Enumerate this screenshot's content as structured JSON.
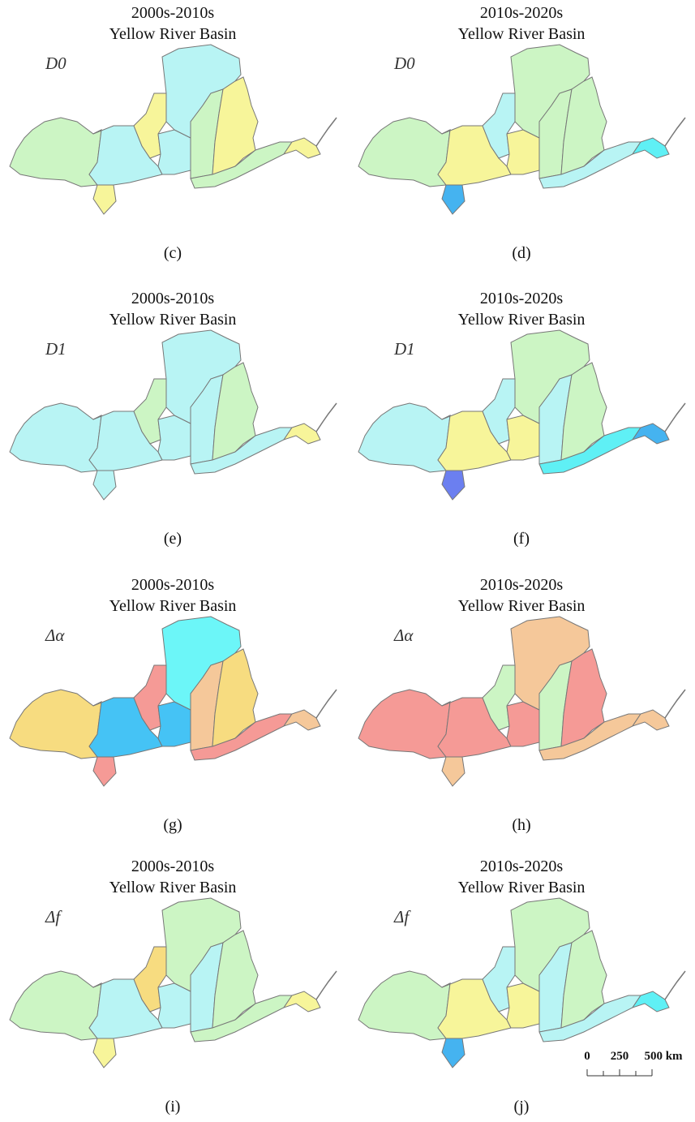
{
  "panels": [
    {
      "title": "2000s-2010s",
      "subtitle": "Yellow River Basin",
      "label": "D0",
      "caption": "(c)",
      "region_colors": [
        "#ccf5c4",
        "#b8f4f4",
        "#f7f59a",
        "#f7f59a",
        "#b8f4f4",
        "#b8f4f4",
        "#ccf5c4",
        "#f7f59a",
        "#ccf5c4",
        "#f7f59a"
      ]
    },
    {
      "title": "2010s-2020s",
      "subtitle": "Yellow River Basin",
      "label": "D0",
      "caption": "(d)",
      "region_colors": [
        "#ccf5c4",
        "#f7f59a",
        "#45b3f0",
        "#b8f4f4",
        "#f7f59a",
        "#ccf5c4",
        "#ccf5c4",
        "#ccf5c4",
        "#b8f4f4",
        "#5ff0f5"
      ]
    },
    {
      "title": "2000s-2010s",
      "subtitle": "Yellow River Basin",
      "label": "D1",
      "caption": "(e)",
      "region_colors": [
        "#b8f4f4",
        "#b8f4f4",
        "#b8f4f4",
        "#ccf5c4",
        "#b8f4f4",
        "#b8f4f4",
        "#b8f4f4",
        "#ccf5c4",
        "#b8f4f4",
        "#f7f59a"
      ]
    },
    {
      "title": "2010s-2020s",
      "subtitle": "Yellow River Basin",
      "label": "D1",
      "caption": "(f)",
      "region_colors": [
        "#b8f4f4",
        "#f7f59a",
        "#6b7ff0",
        "#b8f4f4",
        "#f7f59a",
        "#ccf5c4",
        "#b8f4f4",
        "#ccf5c4",
        "#5ff0f5",
        "#45b3f0"
      ]
    },
    {
      "title": "2000s-2010s",
      "subtitle": "Yellow River Basin",
      "label": "Δα",
      "caption": "(g)",
      "region_colors": [
        "#f7dc80",
        "#45c3f5",
        "#f59a96",
        "#f59a96",
        "#45c3f5",
        "#6cf6f8",
        "#f5c89a",
        "#f7dc80",
        "#f59a96",
        "#f5c89a"
      ]
    },
    {
      "title": "2010s-2020s",
      "subtitle": "Yellow River Basin",
      "label": "Δα",
      "caption": "(h)",
      "region_colors": [
        "#f59a96",
        "#f59a96",
        "#f5c89a",
        "#ccf5c4",
        "#f59a96",
        "#f5c89a",
        "#ccf5c4",
        "#f59a96",
        "#f5c89a",
        "#f5c89a"
      ]
    },
    {
      "title": "2000s-2010s",
      "subtitle": "Yellow River Basin",
      "label": "Δf",
      "caption": "(i)",
      "region_colors": [
        "#ccf5c4",
        "#b8f4f4",
        "#f7f59a",
        "#f7dc80",
        "#b8f4f4",
        "#ccf5c4",
        "#b8f4f4",
        "#ccf5c4",
        "#ccf5c4",
        "#f7f59a"
      ]
    },
    {
      "title": "2010s-2020s",
      "subtitle": "Yellow River Basin",
      "label": "Δf",
      "caption": "(j)",
      "region_colors": [
        "#ccf5c4",
        "#f7f59a",
        "#45b3f0",
        "#b8f4f4",
        "#f7f59a",
        "#ccf5c4",
        "#b8f4f4",
        "#ccf5c4",
        "#b8f4f4",
        "#5ff0f5"
      ]
    }
  ],
  "scale_bar": {
    "labels": [
      "0",
      "250",
      "500 km"
    ]
  }
}
